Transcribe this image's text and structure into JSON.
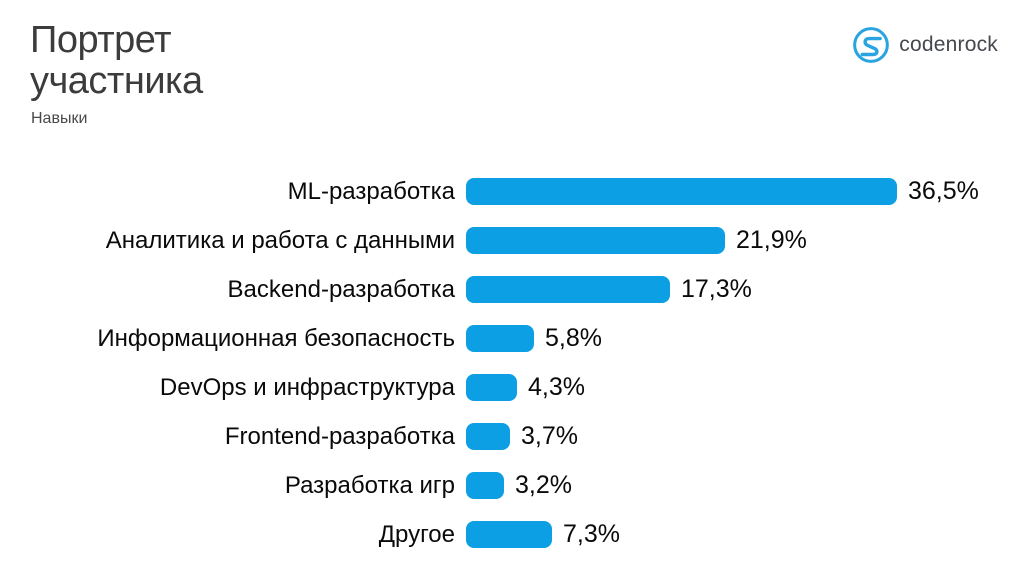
{
  "header": {
    "title": "Портрет\nучастника",
    "subtitle": "Навыки",
    "logo_text": "codenrock"
  },
  "colors": {
    "bar": "#0d9fe4",
    "logo": "#29a4e0",
    "title": "#3c3c3c",
    "text": "#0a0a0a"
  },
  "chart_data": {
    "type": "bar",
    "orientation": "horizontal",
    "title": "Портрет участника",
    "subtitle": "Навыки",
    "categories": [
      "ML-разработка",
      "Аналитика и работа с данными",
      "Backend-разработка",
      "Информационная безопасность",
      "DevOps и инфраструктура",
      "Frontend-разработка",
      "Разработка игр",
      "Другое"
    ],
    "values": [
      36.5,
      21.9,
      17.3,
      5.8,
      4.3,
      3.7,
      3.2,
      7.3
    ],
    "value_labels": [
      "36,5%",
      "21,9%",
      "17,3%",
      "5,8%",
      "4,3%",
      "3,7%",
      "3,2%",
      "7,3%"
    ],
    "unit": "%",
    "xlim": [
      0,
      40
    ],
    "grid": false,
    "legend": false,
    "bar_color": "#0d9fe4"
  }
}
